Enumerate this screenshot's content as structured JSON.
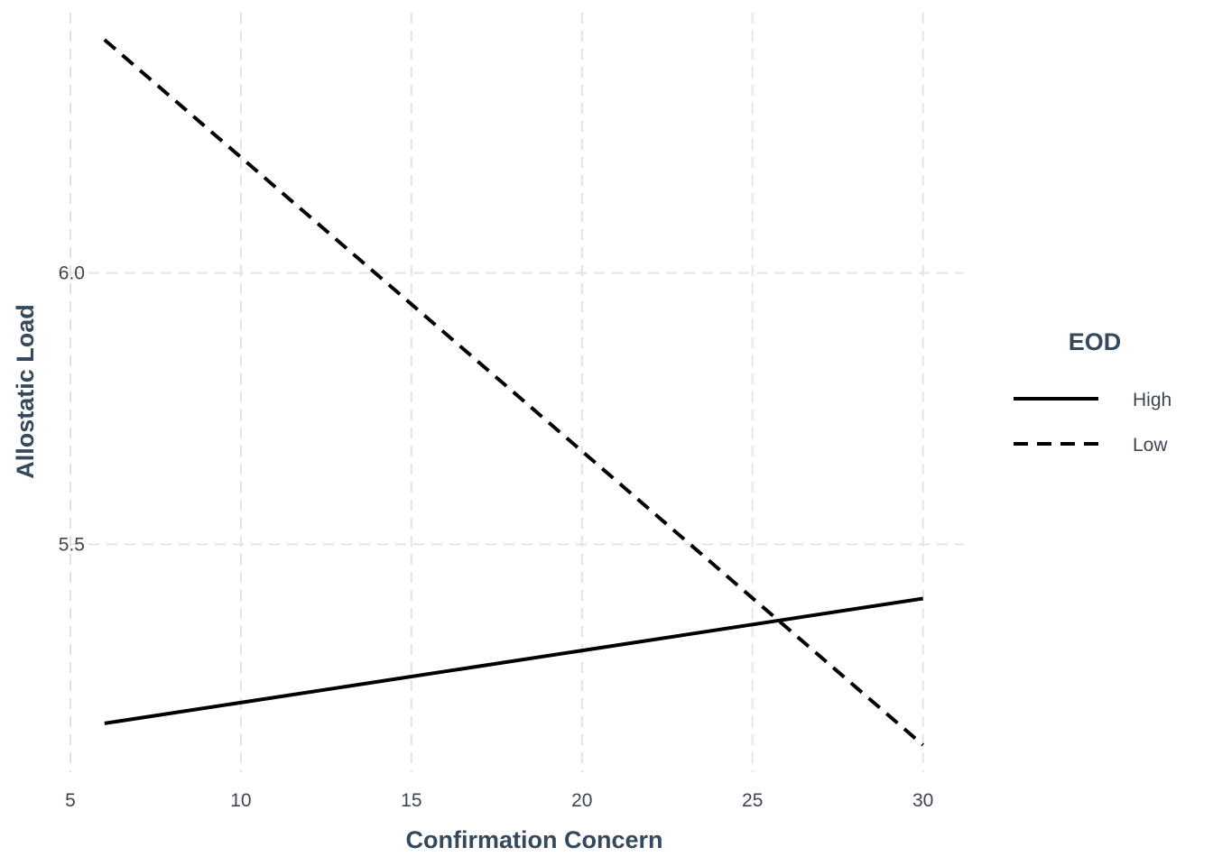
{
  "chart_data": {
    "type": "line",
    "title": "",
    "xlabel": "Confirmation Concern",
    "ylabel": "Allostatic Load",
    "xlim": [
      5,
      31.2
    ],
    "ylim": [
      5.08,
      6.48
    ],
    "x_ticks": [
      5,
      10,
      15,
      20,
      25,
      30
    ],
    "x_tick_labels": [
      "5",
      "10",
      "15",
      "20",
      "25",
      "30"
    ],
    "y_ticks": [
      5.5,
      6.0
    ],
    "y_tick_labels": [
      "5.5",
      "6.0"
    ],
    "grid": true,
    "legend": {
      "title": "EOD",
      "position": "right"
    },
    "series": [
      {
        "name": "High",
        "line_style": "solid",
        "color": "#000000",
        "x": [
          6,
          30
        ],
        "y": [
          5.17,
          5.4
        ]
      },
      {
        "name": "Low",
        "line_style": "dashed",
        "color": "#000000",
        "x": [
          6,
          30
        ],
        "y": [
          6.43,
          5.13
        ]
      }
    ]
  }
}
